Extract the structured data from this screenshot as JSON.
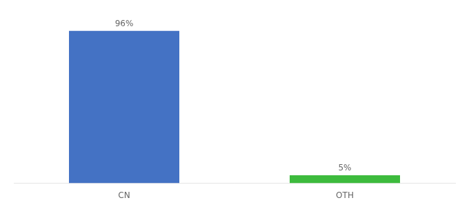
{
  "chart_data": {
    "type": "bar",
    "categories": [
      "CN",
      "OTH"
    ],
    "values": [
      96,
      5
    ],
    "value_labels": [
      "96%",
      "5%"
    ],
    "colors": [
      "#4472c4",
      "#3dbb3d"
    ],
    "ylim": [
      0,
      105
    ],
    "data_labels": true,
    "tick_labels": "x",
    "grid": false
  }
}
